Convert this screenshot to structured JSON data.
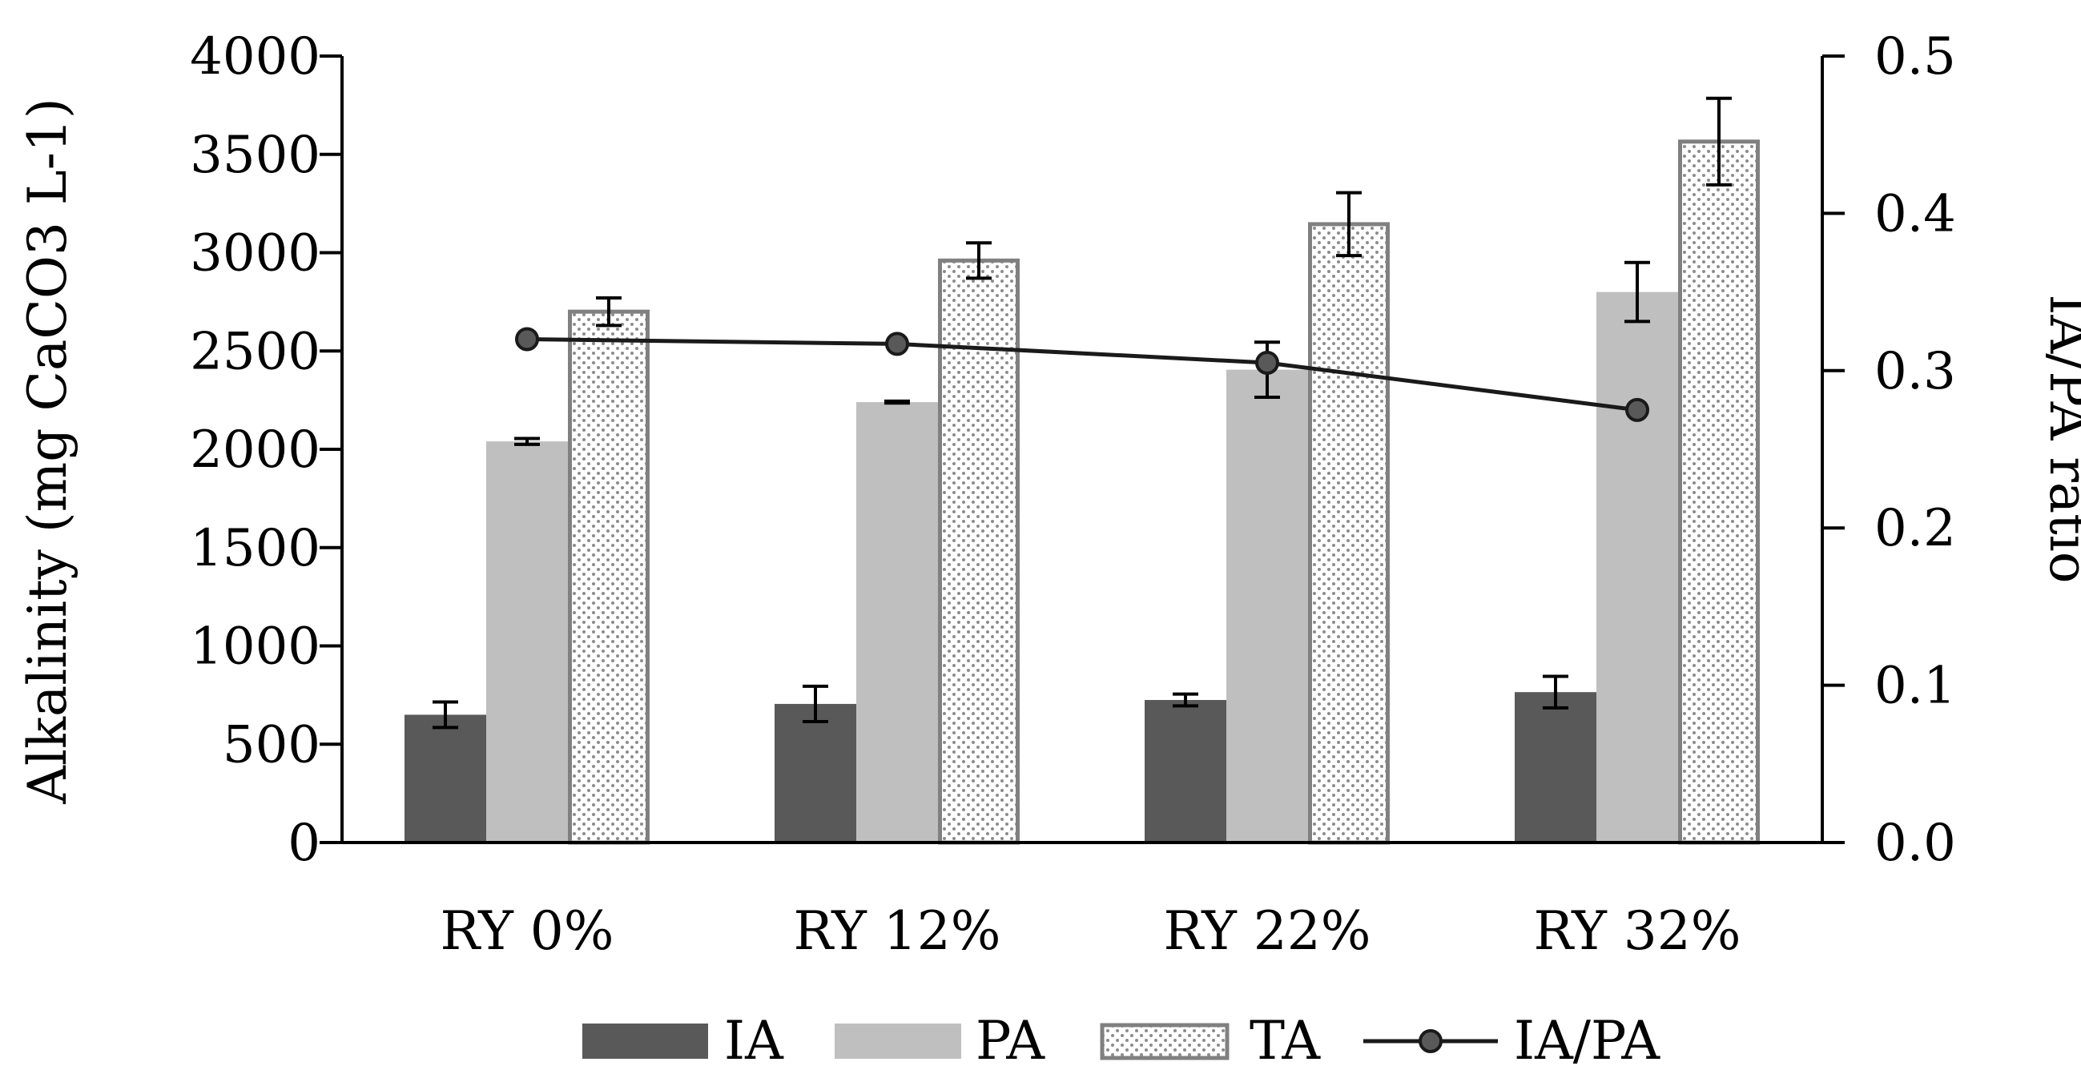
{
  "chart_data": {
    "type": "bar",
    "categories": [
      "RY 0%",
      "RY 12%",
      "RY 22%",
      "RY 32%"
    ],
    "series": [
      {
        "name": "IA",
        "kind": "bar",
        "fill": "#595959",
        "values": [
          650,
          705,
          725,
          765
        ],
        "errors": [
          65,
          90,
          30,
          80
        ]
      },
      {
        "name": "PA",
        "kind": "bar",
        "fill": "#bfbfbf",
        "values": [
          2040,
          2240,
          2405,
          2800
        ],
        "errors": [
          15,
          5,
          140,
          150
        ]
      },
      {
        "name": "TA",
        "kind": "bar",
        "fill": "dotted",
        "values": [
          2700,
          2960,
          3145,
          3565
        ],
        "errors": [
          70,
          90,
          160,
          220
        ]
      },
      {
        "name": "IA/PA",
        "kind": "line",
        "axis": "right",
        "color": "#1a1a1a",
        "values": [
          0.32,
          0.317,
          0.305,
          0.275
        ]
      }
    ],
    "y_left": {
      "label": "Alkalinity (mg CaCO3 L-1)",
      "range": [
        0,
        4000
      ],
      "ticks": [
        "0",
        "500",
        "1000",
        "1500",
        "2000",
        "2500",
        "3000",
        "3500",
        "4000"
      ]
    },
    "y_right": {
      "label": "IA/PA ratio",
      "range": [
        0,
        0.5
      ],
      "ticks": [
        "0.0",
        "0.1",
        "0.2",
        "0.3",
        "0.4",
        "0.5"
      ]
    },
    "legend": {
      "position": "bottom",
      "entries": [
        "IA",
        "PA",
        "TA",
        "IA/PA"
      ]
    },
    "grid": false,
    "colors": {
      "IA": "#595959",
      "PA": "#bfbfbf",
      "TA_border": "#808080",
      "TA_dots": "#8c8c8c",
      "line": "#1a1a1a",
      "marker": "#595959",
      "axis": "#000000"
    }
  }
}
